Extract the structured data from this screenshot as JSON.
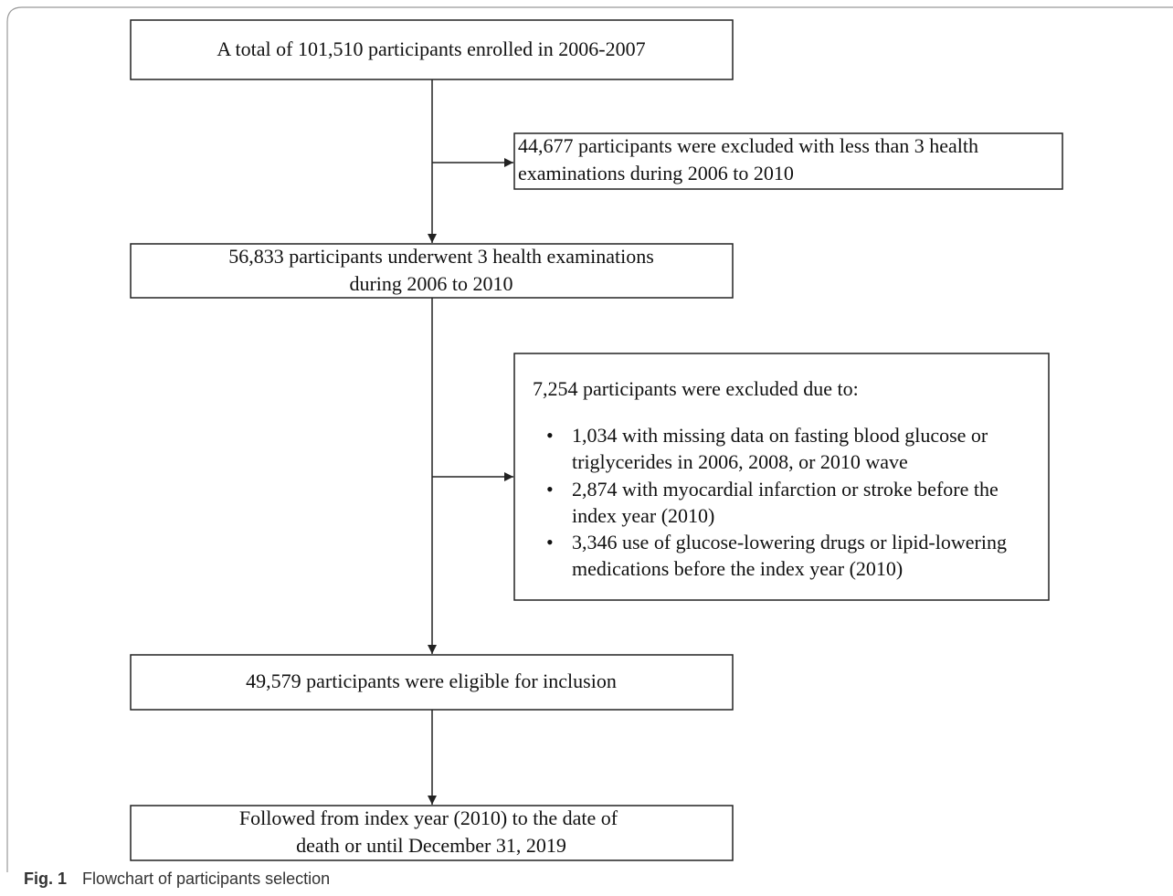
{
  "nodes": [
    {
      "lines": [
        "A total of 101,510 participants enrolled in 2006-2007"
      ]
    },
    {
      "lines": [
        "44,677 participants were excluded with less than 3 health",
        "examinations during 2006 to 2010"
      ]
    },
    {
      "lines": [
        "56,833 participants underwent 3 health examinations",
        "during 2006 to 2010"
      ]
    },
    {
      "title": "7,254 participants were excluded due to:",
      "bullets": [
        [
          "1,034 with missing data on fasting blood glucose or",
          "triglycerides in 2006, 2008, or 2010 wave"
        ],
        [
          "2,874 with myocardial infarction or stroke before the",
          "index year (2010)"
        ],
        [
          "3,346 use of glucose-lowering drugs or lipid-lowering",
          "medications before the index year (2010)"
        ]
      ]
    },
    {
      "lines": [
        "49,579 participants were eligible for inclusion"
      ]
    },
    {
      "lines": [
        "Followed from index year (2010) to the date of",
        "death or until December 31, 2019"
      ]
    }
  ],
  "caption": {
    "label": "Fig. 1",
    "text": "Flowchart of participants selection"
  }
}
